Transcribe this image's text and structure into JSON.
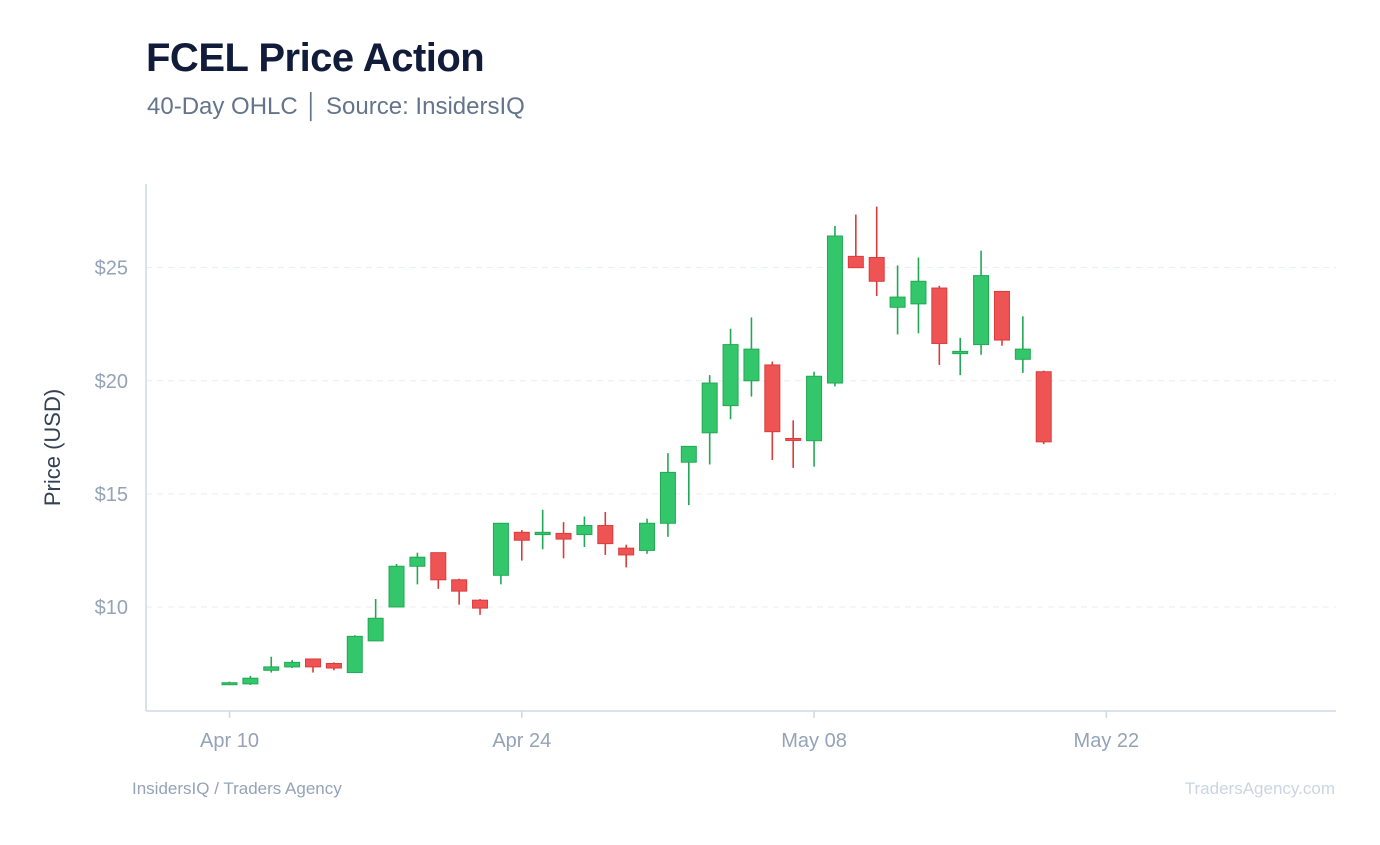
{
  "header": {
    "title": "FCEL Price Action",
    "subtitle": "40-Day OHLC │ Source: InsidersIQ"
  },
  "footer": {
    "left": "InsidersIQ / Traders Agency",
    "right": "TradersAgency.com"
  },
  "colors": {
    "up": "#34c66a",
    "up_stroke": "#22a855",
    "down": "#ef5454",
    "down_stroke": "#dc3b3b",
    "grid": "#e8edf3",
    "axis": "#cfd8e3"
  },
  "chart_data": {
    "type": "candlestick",
    "title": "FCEL Price Action",
    "subtitle": "40-Day OHLC │ Source: InsidersIQ",
    "xlabel": "",
    "ylabel": "Price (USD)",
    "x_range": [
      "2025-04-06",
      "2025-06-02"
    ],
    "y_range": [
      5.4,
      28.7
    ],
    "y_ticks": [
      10,
      15,
      20,
      25
    ],
    "y_tick_labels": [
      "$10",
      "$15",
      "$20",
      "$25"
    ],
    "x_ticks": [
      "2025-04-10",
      "2025-04-24",
      "2025-05-08",
      "2025-05-22",
      "2025-06-05"
    ],
    "x_tick_labels": [
      "Apr 10",
      "Apr 24",
      "May 08",
      "May 22",
      ""
    ],
    "grid": "horizontal dashed",
    "legend": "none",
    "candles": [
      {
        "date": "2025-04-10",
        "open": 6.6,
        "high": 6.7,
        "low": 6.55,
        "close": 6.65
      },
      {
        "date": "2025-04-11",
        "open": 6.6,
        "high": 6.95,
        "low": 6.55,
        "close": 6.85
      },
      {
        "date": "2025-04-12",
        "open": 7.2,
        "high": 7.8,
        "low": 7.1,
        "close": 7.35
      },
      {
        "date": "2025-04-13",
        "open": 7.35,
        "high": 7.65,
        "low": 7.3,
        "close": 7.55
      },
      {
        "date": "2025-04-14",
        "open": 7.7,
        "high": 7.7,
        "low": 7.1,
        "close": 7.35
      },
      {
        "date": "2025-04-15",
        "open": 7.5,
        "high": 7.55,
        "low": 7.2,
        "close": 7.3
      },
      {
        "date": "2025-04-16",
        "open": 7.1,
        "high": 8.75,
        "low": 7.1,
        "close": 8.7
      },
      {
        "date": "2025-04-17",
        "open": 8.5,
        "high": 10.35,
        "low": 8.5,
        "close": 9.5
      },
      {
        "date": "2025-04-18",
        "open": 10.0,
        "high": 11.9,
        "low": 10.0,
        "close": 11.8
      },
      {
        "date": "2025-04-19",
        "open": 11.8,
        "high": 12.4,
        "low": 11.0,
        "close": 12.2
      },
      {
        "date": "2025-04-20",
        "open": 12.4,
        "high": 12.4,
        "low": 10.8,
        "close": 11.2
      },
      {
        "date": "2025-04-21",
        "open": 11.2,
        "high": 11.25,
        "low": 10.1,
        "close": 10.7
      },
      {
        "date": "2025-04-22",
        "open": 10.3,
        "high": 10.35,
        "low": 9.65,
        "close": 9.95
      },
      {
        "date": "2025-04-23",
        "open": 11.4,
        "high": 13.7,
        "low": 11.0,
        "close": 13.7
      },
      {
        "date": "2025-04-24",
        "open": 13.3,
        "high": 13.4,
        "low": 12.05,
        "close": 12.95
      },
      {
        "date": "2025-04-25",
        "open": 13.2,
        "high": 14.3,
        "low": 12.55,
        "close": 13.3
      },
      {
        "date": "2025-04-26",
        "open": 13.25,
        "high": 13.75,
        "low": 12.15,
        "close": 13.0
      },
      {
        "date": "2025-04-27",
        "open": 13.2,
        "high": 14.0,
        "low": 12.65,
        "close": 13.6
      },
      {
        "date": "2025-04-28",
        "open": 13.6,
        "high": 14.2,
        "low": 12.3,
        "close": 12.8
      },
      {
        "date": "2025-04-29",
        "open": 12.6,
        "high": 12.75,
        "low": 11.75,
        "close": 12.3
      },
      {
        "date": "2025-04-30",
        "open": 12.5,
        "high": 13.9,
        "low": 12.35,
        "close": 13.7
      },
      {
        "date": "2025-05-01",
        "open": 13.7,
        "high": 16.8,
        "low": 13.1,
        "close": 15.95
      },
      {
        "date": "2025-05-02",
        "open": 16.4,
        "high": 17.1,
        "low": 14.5,
        "close": 17.1
      },
      {
        "date": "2025-05-03",
        "open": 17.7,
        "high": 20.25,
        "low": 16.3,
        "close": 19.9
      },
      {
        "date": "2025-05-04",
        "open": 18.9,
        "high": 22.3,
        "low": 18.3,
        "close": 21.6
      },
      {
        "date": "2025-05-05",
        "open": 20.0,
        "high": 22.8,
        "low": 19.3,
        "close": 21.4
      },
      {
        "date": "2025-05-06",
        "open": 20.7,
        "high": 20.85,
        "low": 16.5,
        "close": 17.75
      },
      {
        "date": "2025-05-07",
        "open": 17.45,
        "high": 18.25,
        "low": 16.15,
        "close": 17.4
      },
      {
        "date": "2025-05-08",
        "open": 17.35,
        "high": 20.4,
        "low": 16.2,
        "close": 20.2
      },
      {
        "date": "2025-05-09",
        "open": 19.9,
        "high": 26.85,
        "low": 19.75,
        "close": 26.4
      },
      {
        "date": "2025-05-10",
        "open": 25.5,
        "high": 27.35,
        "low": 25.0,
        "close": 25.0
      },
      {
        "date": "2025-05-11",
        "open": 25.45,
        "high": 27.7,
        "low": 23.75,
        "close": 24.4
      },
      {
        "date": "2025-05-12",
        "open": 23.25,
        "high": 25.1,
        "low": 22.05,
        "close": 23.7
      },
      {
        "date": "2025-05-13",
        "open": 23.4,
        "high": 25.45,
        "low": 22.1,
        "close": 24.4
      },
      {
        "date": "2025-05-14",
        "open": 24.1,
        "high": 24.2,
        "low": 20.7,
        "close": 21.65
      },
      {
        "date": "2025-05-15",
        "open": 21.2,
        "high": 21.9,
        "low": 20.25,
        "close": 21.3
      },
      {
        "date": "2025-05-16",
        "open": 21.6,
        "high": 25.75,
        "low": 21.15,
        "close": 24.65
      },
      {
        "date": "2025-05-17",
        "open": 23.95,
        "high": 23.95,
        "low": 21.55,
        "close": 21.8
      },
      {
        "date": "2025-05-18",
        "open": 20.95,
        "high": 22.85,
        "low": 20.35,
        "close": 21.4
      },
      {
        "date": "2025-05-19",
        "open": 20.4,
        "high": 20.45,
        "low": 17.2,
        "close": 17.3
      }
    ]
  }
}
